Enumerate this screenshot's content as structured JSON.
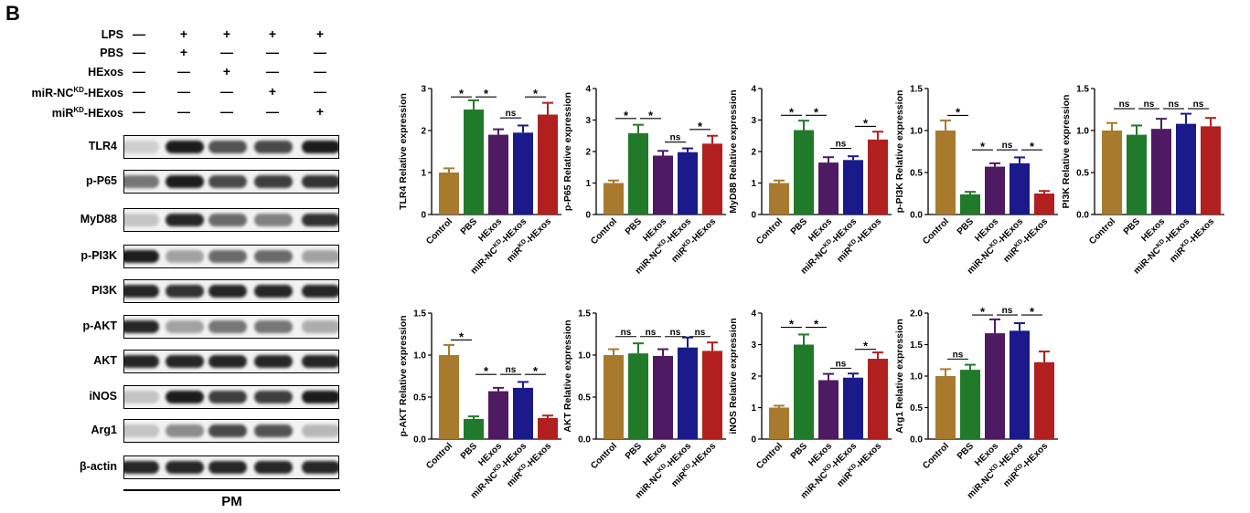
{
  "panel_letter": "B",
  "conditions": [
    {
      "label": "LPS",
      "html": "LPS",
      "signs": [
        "—",
        "+",
        "+",
        "+",
        "+"
      ]
    },
    {
      "label": "PBS",
      "html": "PBS",
      "signs": [
        "—",
        "+",
        "—",
        "—",
        "—"
      ]
    },
    {
      "label": "HExos",
      "html": "HExos",
      "signs": [
        "—",
        "—",
        "+",
        "—",
        "—"
      ]
    },
    {
      "label": "miR-NCKD-HExos",
      "html": "miR-NC<sup>KD</sup>-HExos",
      "signs": [
        "—",
        "—",
        "—",
        "+",
        "—"
      ]
    },
    {
      "label": "miRKD-HExos",
      "html": "miR<sup>KD</sup>-HExos",
      "signs": [
        "—",
        "—",
        "—",
        "—",
        "+"
      ]
    }
  ],
  "bands": [
    {
      "label": "TLR4",
      "intensity": [
        0.15,
        0.95,
        0.7,
        0.75,
        0.95
      ]
    },
    {
      "label": "p-P65",
      "intensity": [
        0.55,
        0.95,
        0.75,
        0.8,
        0.85
      ]
    },
    {
      "label": "MyD88",
      "intensity": [
        0.2,
        0.9,
        0.6,
        0.5,
        0.85
      ]
    },
    {
      "label": "p-PI3K",
      "intensity": [
        0.95,
        0.35,
        0.6,
        0.6,
        0.35
      ]
    },
    {
      "label": "PI3K",
      "intensity": [
        0.9,
        0.85,
        0.9,
        0.9,
        0.9
      ]
    },
    {
      "label": "p-AKT",
      "intensity": [
        0.9,
        0.35,
        0.55,
        0.55,
        0.3
      ]
    },
    {
      "label": "AKT",
      "intensity": [
        0.9,
        0.9,
        0.9,
        0.9,
        0.9
      ]
    },
    {
      "label": "iNOS",
      "intensity": [
        0.2,
        0.95,
        0.8,
        0.8,
        0.95
      ]
    },
    {
      "label": "Arg1",
      "intensity": [
        0.2,
        0.45,
        0.75,
        0.7,
        0.25
      ]
    },
    {
      "label": "β-actin",
      "intensity": [
        0.9,
        0.9,
        0.9,
        0.9,
        0.9
      ]
    }
  ],
  "pm_label": "PM",
  "colors": [
    "#a87a2e",
    "#217a2a",
    "#4e1a62",
    "#1a1a8a",
    "#b21f1f"
  ],
  "chart_data": [
    {
      "type": "bar",
      "ylabel": "TLR4 Relative expression",
      "ylim": [
        0,
        3
      ],
      "yticks": [
        "0",
        "1",
        "2",
        "3"
      ],
      "ytick_values": [
        0,
        1,
        2,
        3
      ],
      "categories": [
        "Control",
        "PBS",
        "HExos",
        "miR-NCKD-HExos",
        "miRKD-HExos"
      ],
      "values": [
        1.0,
        2.5,
        1.9,
        1.95,
        2.38
      ],
      "errors": [
        0.1,
        0.22,
        0.13,
        0.17,
        0.28
      ],
      "sig": [
        {
          "from": 0,
          "to": 1,
          "label": "*",
          "y": 2.8
        },
        {
          "from": 1,
          "to": 2,
          "label": "*",
          "y": 2.8
        },
        {
          "from": 2,
          "to": 3,
          "label": "ns",
          "y": 2.3
        },
        {
          "from": 3,
          "to": 4,
          "label": "*",
          "y": 2.8
        }
      ]
    },
    {
      "type": "bar",
      "ylabel": "p-P65 Relative expression",
      "ylim": [
        0,
        4
      ],
      "yticks": [
        "0",
        "1",
        "2",
        "3",
        "4"
      ],
      "ytick_values": [
        0,
        1,
        2,
        3,
        4
      ],
      "categories": [
        "Control",
        "PBS",
        "HExos",
        "miR-NCKD-HExos",
        "miRKD-HExos"
      ],
      "values": [
        1.0,
        2.58,
        1.87,
        1.98,
        2.25
      ],
      "errors": [
        0.08,
        0.27,
        0.15,
        0.12,
        0.25
      ],
      "sig": [
        {
          "from": 0,
          "to": 1,
          "label": "*",
          "y": 3.05
        },
        {
          "from": 1,
          "to": 2,
          "label": "*",
          "y": 3.05
        },
        {
          "from": 2,
          "to": 3,
          "label": "ns",
          "y": 2.3
        },
        {
          "from": 3,
          "to": 4,
          "label": "*",
          "y": 2.7
        }
      ]
    },
    {
      "type": "bar",
      "ylabel": "MyD88 Relative expression",
      "ylim": [
        0,
        4
      ],
      "yticks": [
        "0",
        "1",
        "2",
        "3",
        "4"
      ],
      "ytick_values": [
        0,
        1,
        2,
        3,
        4
      ],
      "categories": [
        "Control",
        "PBS",
        "HExos",
        "miR-NCKD-HExos",
        "miRKD-HExos"
      ],
      "values": [
        1.0,
        2.68,
        1.65,
        1.73,
        2.38
      ],
      "errors": [
        0.08,
        0.3,
        0.17,
        0.12,
        0.25
      ],
      "sig": [
        {
          "from": 0,
          "to": 1,
          "label": "*",
          "y": 3.15
        },
        {
          "from": 1,
          "to": 2,
          "label": "*",
          "y": 3.15
        },
        {
          "from": 2,
          "to": 3,
          "label": "ns",
          "y": 2.1
        },
        {
          "from": 3,
          "to": 4,
          "label": "*",
          "y": 2.8
        }
      ]
    },
    {
      "type": "bar",
      "ylabel": "p-PI3K Relative expression",
      "ylim": [
        0,
        1.5
      ],
      "yticks": [
        "0.0",
        "0.5",
        "1.0",
        "1.5"
      ],
      "ytick_values": [
        0,
        0.5,
        1,
        1.5
      ],
      "categories": [
        "Control",
        "PBS",
        "HExos",
        "miR-NCKD-HExos",
        "miRKD-HExos"
      ],
      "values": [
        1.0,
        0.24,
        0.57,
        0.61,
        0.25
      ],
      "errors": [
        0.12,
        0.03,
        0.04,
        0.07,
        0.03
      ],
      "sig": [
        {
          "from": 0,
          "to": 1,
          "label": "*",
          "y": 1.18
        },
        {
          "from": 1,
          "to": 2,
          "label": "*",
          "y": 0.77
        },
        {
          "from": 2,
          "to": 3,
          "label": "ns",
          "y": 0.77
        },
        {
          "from": 3,
          "to": 4,
          "label": "*",
          "y": 0.77
        }
      ]
    },
    {
      "type": "bar",
      "ylabel": "PI3K Relative expression",
      "ylim": [
        0,
        1.5
      ],
      "yticks": [
        "0.0",
        "0.5",
        "1.0",
        "1.5"
      ],
      "ytick_values": [
        0,
        0.5,
        1,
        1.5
      ],
      "categories": [
        "Control",
        "PBS",
        "HExos",
        "miR-NCKD-HExos",
        "miRKD-HExos"
      ],
      "values": [
        1.0,
        0.95,
        1.02,
        1.08,
        1.05
      ],
      "errors": [
        0.09,
        0.11,
        0.12,
        0.12,
        0.1
      ],
      "sig": [
        {
          "from": 0,
          "to": 1,
          "label": "ns",
          "y": 1.26
        },
        {
          "from": 1,
          "to": 2,
          "label": "ns",
          "y": 1.26
        },
        {
          "from": 2,
          "to": 3,
          "label": "ns",
          "y": 1.26
        },
        {
          "from": 3,
          "to": 4,
          "label": "ns",
          "y": 1.26
        }
      ]
    },
    {
      "type": "bar",
      "ylabel": "p-AKT Relative expression",
      "ylim": [
        0,
        1.5
      ],
      "yticks": [
        "0.0",
        "0.5",
        "1.0",
        "1.5"
      ],
      "ytick_values": [
        0,
        0.5,
        1,
        1.5
      ],
      "categories": [
        "Control",
        "PBS",
        "HExos",
        "miR-NCKD-HExos",
        "miRKD-HExos"
      ],
      "values": [
        1.0,
        0.24,
        0.57,
        0.61,
        0.25
      ],
      "errors": [
        0.12,
        0.03,
        0.04,
        0.07,
        0.03
      ],
      "sig": [
        {
          "from": 0,
          "to": 1,
          "label": "*",
          "y": 1.18
        },
        {
          "from": 1,
          "to": 2,
          "label": "*",
          "y": 0.77
        },
        {
          "from": 2,
          "to": 3,
          "label": "ns",
          "y": 0.77
        },
        {
          "from": 3,
          "to": 4,
          "label": "*",
          "y": 0.77
        }
      ]
    },
    {
      "type": "bar",
      "ylabel": "AKT Relative expression",
      "ylim": [
        0,
        1.5
      ],
      "yticks": [
        "0.0",
        "0.5",
        "1.0",
        "1.5"
      ],
      "ytick_values": [
        0,
        0.5,
        1,
        1.5
      ],
      "categories": [
        "Control",
        "PBS",
        "HExos",
        "miR-NCKD-HExos",
        "miRKD-HExos"
      ],
      "values": [
        1.0,
        1.02,
        0.99,
        1.09,
        1.05
      ],
      "errors": [
        0.07,
        0.12,
        0.08,
        0.12,
        0.1
      ],
      "sig": [
        {
          "from": 0,
          "to": 1,
          "label": "ns",
          "y": 1.22
        },
        {
          "from": 1,
          "to": 2,
          "label": "ns",
          "y": 1.22
        },
        {
          "from": 2,
          "to": 3,
          "label": "ns",
          "y": 1.22
        },
        {
          "from": 3,
          "to": 4,
          "label": "ns",
          "y": 1.22
        }
      ]
    },
    {
      "type": "bar",
      "ylabel": "iNOS Relative expression",
      "ylim": [
        0,
        4
      ],
      "yticks": [
        "0",
        "1",
        "2",
        "3",
        "4"
      ],
      "ytick_values": [
        0,
        1,
        2,
        3,
        4
      ],
      "categories": [
        "Control",
        "PBS",
        "HExos",
        "miR-NCKD-HExos",
        "miRKD-HExos"
      ],
      "values": [
        1.0,
        3.0,
        1.87,
        1.95,
        2.55
      ],
      "errors": [
        0.06,
        0.32,
        0.2,
        0.13,
        0.2
      ],
      "sig": [
        {
          "from": 0,
          "to": 1,
          "label": "*",
          "y": 3.55
        },
        {
          "from": 1,
          "to": 2,
          "label": "*",
          "y": 3.55
        },
        {
          "from": 2,
          "to": 3,
          "label": "ns",
          "y": 2.25
        },
        {
          "from": 3,
          "to": 4,
          "label": "*",
          "y": 2.85
        }
      ]
    },
    {
      "type": "bar",
      "ylabel": "Arg1 Relative expression",
      "ylim": [
        0,
        2
      ],
      "yticks": [
        "0.0",
        "0.5",
        "1.0",
        "1.5",
        "2.0"
      ],
      "ytick_values": [
        0,
        0.5,
        1,
        1.5,
        2
      ],
      "categories": [
        "Control",
        "PBS",
        "HExos",
        "miR-NCKD-HExos",
        "miRKD-HExos"
      ],
      "values": [
        1.0,
        1.1,
        1.68,
        1.72,
        1.22
      ],
      "errors": [
        0.11,
        0.08,
        0.22,
        0.12,
        0.17
      ],
      "sig": [
        {
          "from": 0,
          "to": 1,
          "label": "ns",
          "y": 1.27
        },
        {
          "from": 1,
          "to": 2,
          "label": "*",
          "y": 1.97
        },
        {
          "from": 2,
          "to": 3,
          "label": "ns",
          "y": 1.97
        },
        {
          "from": 3,
          "to": 4,
          "label": "*",
          "y": 1.97
        }
      ]
    }
  ]
}
